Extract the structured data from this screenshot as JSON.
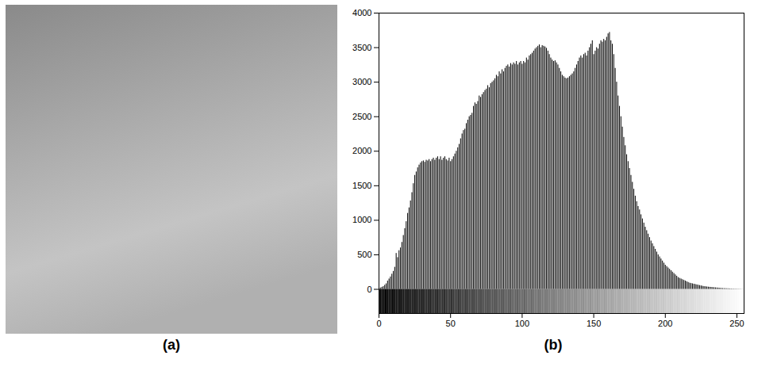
{
  "chart_data": [
    {
      "type": "image",
      "caption": "(a)"
    },
    {
      "type": "bar",
      "caption": "(b)",
      "color": "#000000",
      "x": [
        0,
        1,
        2,
        3,
        4,
        5,
        6,
        7,
        8,
        9,
        10,
        11,
        12,
        13,
        14,
        15,
        16,
        17,
        18,
        19,
        20,
        21,
        22,
        23,
        24,
        25,
        26,
        27,
        28,
        29,
        30,
        31,
        32,
        33,
        34,
        35,
        36,
        37,
        38,
        39,
        40,
        41,
        42,
        43,
        44,
        45,
        46,
        47,
        48,
        49,
        50,
        51,
        52,
        53,
        54,
        55,
        56,
        57,
        58,
        59,
        60,
        61,
        62,
        63,
        64,
        65,
        66,
        67,
        68,
        69,
        70,
        71,
        72,
        73,
        74,
        75,
        76,
        77,
        78,
        79,
        80,
        81,
        82,
        83,
        84,
        85,
        86,
        87,
        88,
        89,
        90,
        91,
        92,
        93,
        94,
        95,
        96,
        97,
        98,
        99,
        100,
        101,
        102,
        103,
        104,
        105,
        106,
        107,
        108,
        109,
        110,
        111,
        112,
        113,
        114,
        115,
        116,
        117,
        118,
        119,
        120,
        121,
        122,
        123,
        124,
        125,
        126,
        127,
        128,
        129,
        130,
        131,
        132,
        133,
        134,
        135,
        136,
        137,
        138,
        139,
        140,
        141,
        142,
        143,
        144,
        145,
        146,
        147,
        148,
        149,
        150,
        151,
        152,
        153,
        154,
        155,
        156,
        157,
        158,
        159,
        160,
        161,
        162,
        163,
        164,
        165,
        166,
        167,
        168,
        169,
        170,
        171,
        172,
        173,
        174,
        175,
        176,
        177,
        178,
        179,
        180,
        181,
        182,
        183,
        184,
        185,
        186,
        187,
        188,
        189,
        190,
        191,
        192,
        193,
        194,
        195,
        196,
        197,
        198,
        199,
        200,
        201,
        202,
        203,
        204,
        205,
        206,
        207,
        208,
        209,
        210,
        211,
        212,
        213,
        214,
        215,
        216,
        217,
        218,
        219,
        220,
        221,
        222,
        223,
        224,
        225,
        226,
        227,
        228,
        229,
        230,
        231,
        232,
        233,
        234,
        235,
        236,
        237,
        238,
        239,
        240,
        241,
        242,
        243,
        244,
        245,
        246,
        247,
        248,
        249,
        250,
        251,
        252,
        253,
        254,
        255
      ],
      "values": [
        10,
        20,
        30,
        40,
        60,
        80,
        120,
        150,
        180,
        220,
        260,
        320,
        520,
        460,
        560,
        600,
        680,
        780,
        880,
        980,
        1100,
        1180,
        1280,
        1400,
        1530,
        1650,
        1700,
        1760,
        1800,
        1830,
        1850,
        1860,
        1840,
        1870,
        1860,
        1880,
        1850,
        1880,
        1900,
        1870,
        1900,
        1920,
        1880,
        1920,
        1870,
        1900,
        1920,
        1880,
        1860,
        1900,
        1850,
        1880,
        1920,
        1960,
        2000,
        2050,
        2100,
        2180,
        2250,
        2300,
        2320,
        2400,
        2450,
        2500,
        2520,
        2550,
        2650,
        2700,
        2680,
        2720,
        2800,
        2780,
        2820,
        2850,
        2880,
        2900,
        2950,
        2920,
        2980,
        3000,
        3020,
        3050,
        3100,
        3080,
        3150,
        3120,
        3180,
        3150,
        3200,
        3230,
        3250,
        3220,
        3270,
        3250,
        3280,
        3260,
        3300,
        3250,
        3280,
        3300,
        3260,
        3300,
        3280,
        3350,
        3320,
        3380,
        3400,
        3420,
        3450,
        3480,
        3500,
        3520,
        3540,
        3500,
        3530,
        3520,
        3510,
        3490,
        3450,
        3400,
        3350,
        3320,
        3300,
        3310,
        3280,
        3250,
        3200,
        3150,
        3100,
        3080,
        3060,
        3050,
        3060,
        3080,
        3100,
        3120,
        3150,
        3200,
        3250,
        3300,
        3350,
        3380,
        3350,
        3400,
        3420,
        3380,
        3450,
        3500,
        3550,
        3600,
        3400,
        3450,
        3500,
        3480,
        3550,
        3600,
        3580,
        3620,
        3600,
        3650,
        3700,
        3720,
        3600,
        3550,
        3400,
        3200,
        3000,
        2800,
        2650,
        2500,
        2350,
        2200,
        2080,
        1950,
        1850,
        1750,
        1650,
        1550,
        1450,
        1350,
        1270,
        1200,
        1150,
        1080,
        1020,
        960,
        900,
        850,
        800,
        750,
        700,
        660,
        620,
        580,
        540,
        500,
        470,
        440,
        410,
        380,
        350,
        330,
        310,
        290,
        270,
        250,
        230,
        210,
        190,
        170,
        160,
        150,
        140,
        130,
        120,
        110,
        100,
        90,
        85,
        80,
        75,
        70,
        65,
        60,
        55,
        50,
        45,
        40,
        38,
        35,
        32,
        30,
        28,
        26,
        24,
        22,
        20,
        18,
        16,
        14,
        12,
        11,
        10,
        9,
        8,
        7,
        6,
        5,
        5,
        4,
        4,
        3,
        3,
        2,
        2,
        1
      ],
      "xlim": [
        0,
        255
      ],
      "xticks": [
        0,
        50,
        100,
        150,
        200,
        250
      ],
      "ylim": [
        -350,
        4000
      ],
      "yticks": [
        0,
        500,
        1000,
        1500,
        2000,
        2500,
        3000,
        3500,
        4000
      ],
      "grid": false
    }
  ]
}
